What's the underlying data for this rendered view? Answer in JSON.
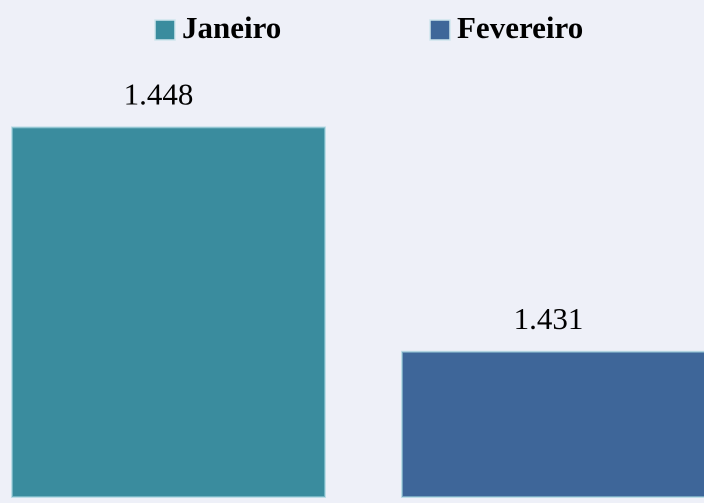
{
  "chart_data": {
    "type": "bar",
    "categories": [
      null
    ],
    "series": [
      {
        "name": "Janeiro",
        "color": "#3a8c9e",
        "values": [
          1448
        ],
        "value_labels": [
          "1.448"
        ]
      },
      {
        "name": "Fevereiro",
        "color": "#3e6699",
        "values": [
          1431
        ],
        "value_labels": [
          "1.431"
        ]
      }
    ],
    "ylim": [
      1420,
      1450
    ],
    "grid": false
  }
}
